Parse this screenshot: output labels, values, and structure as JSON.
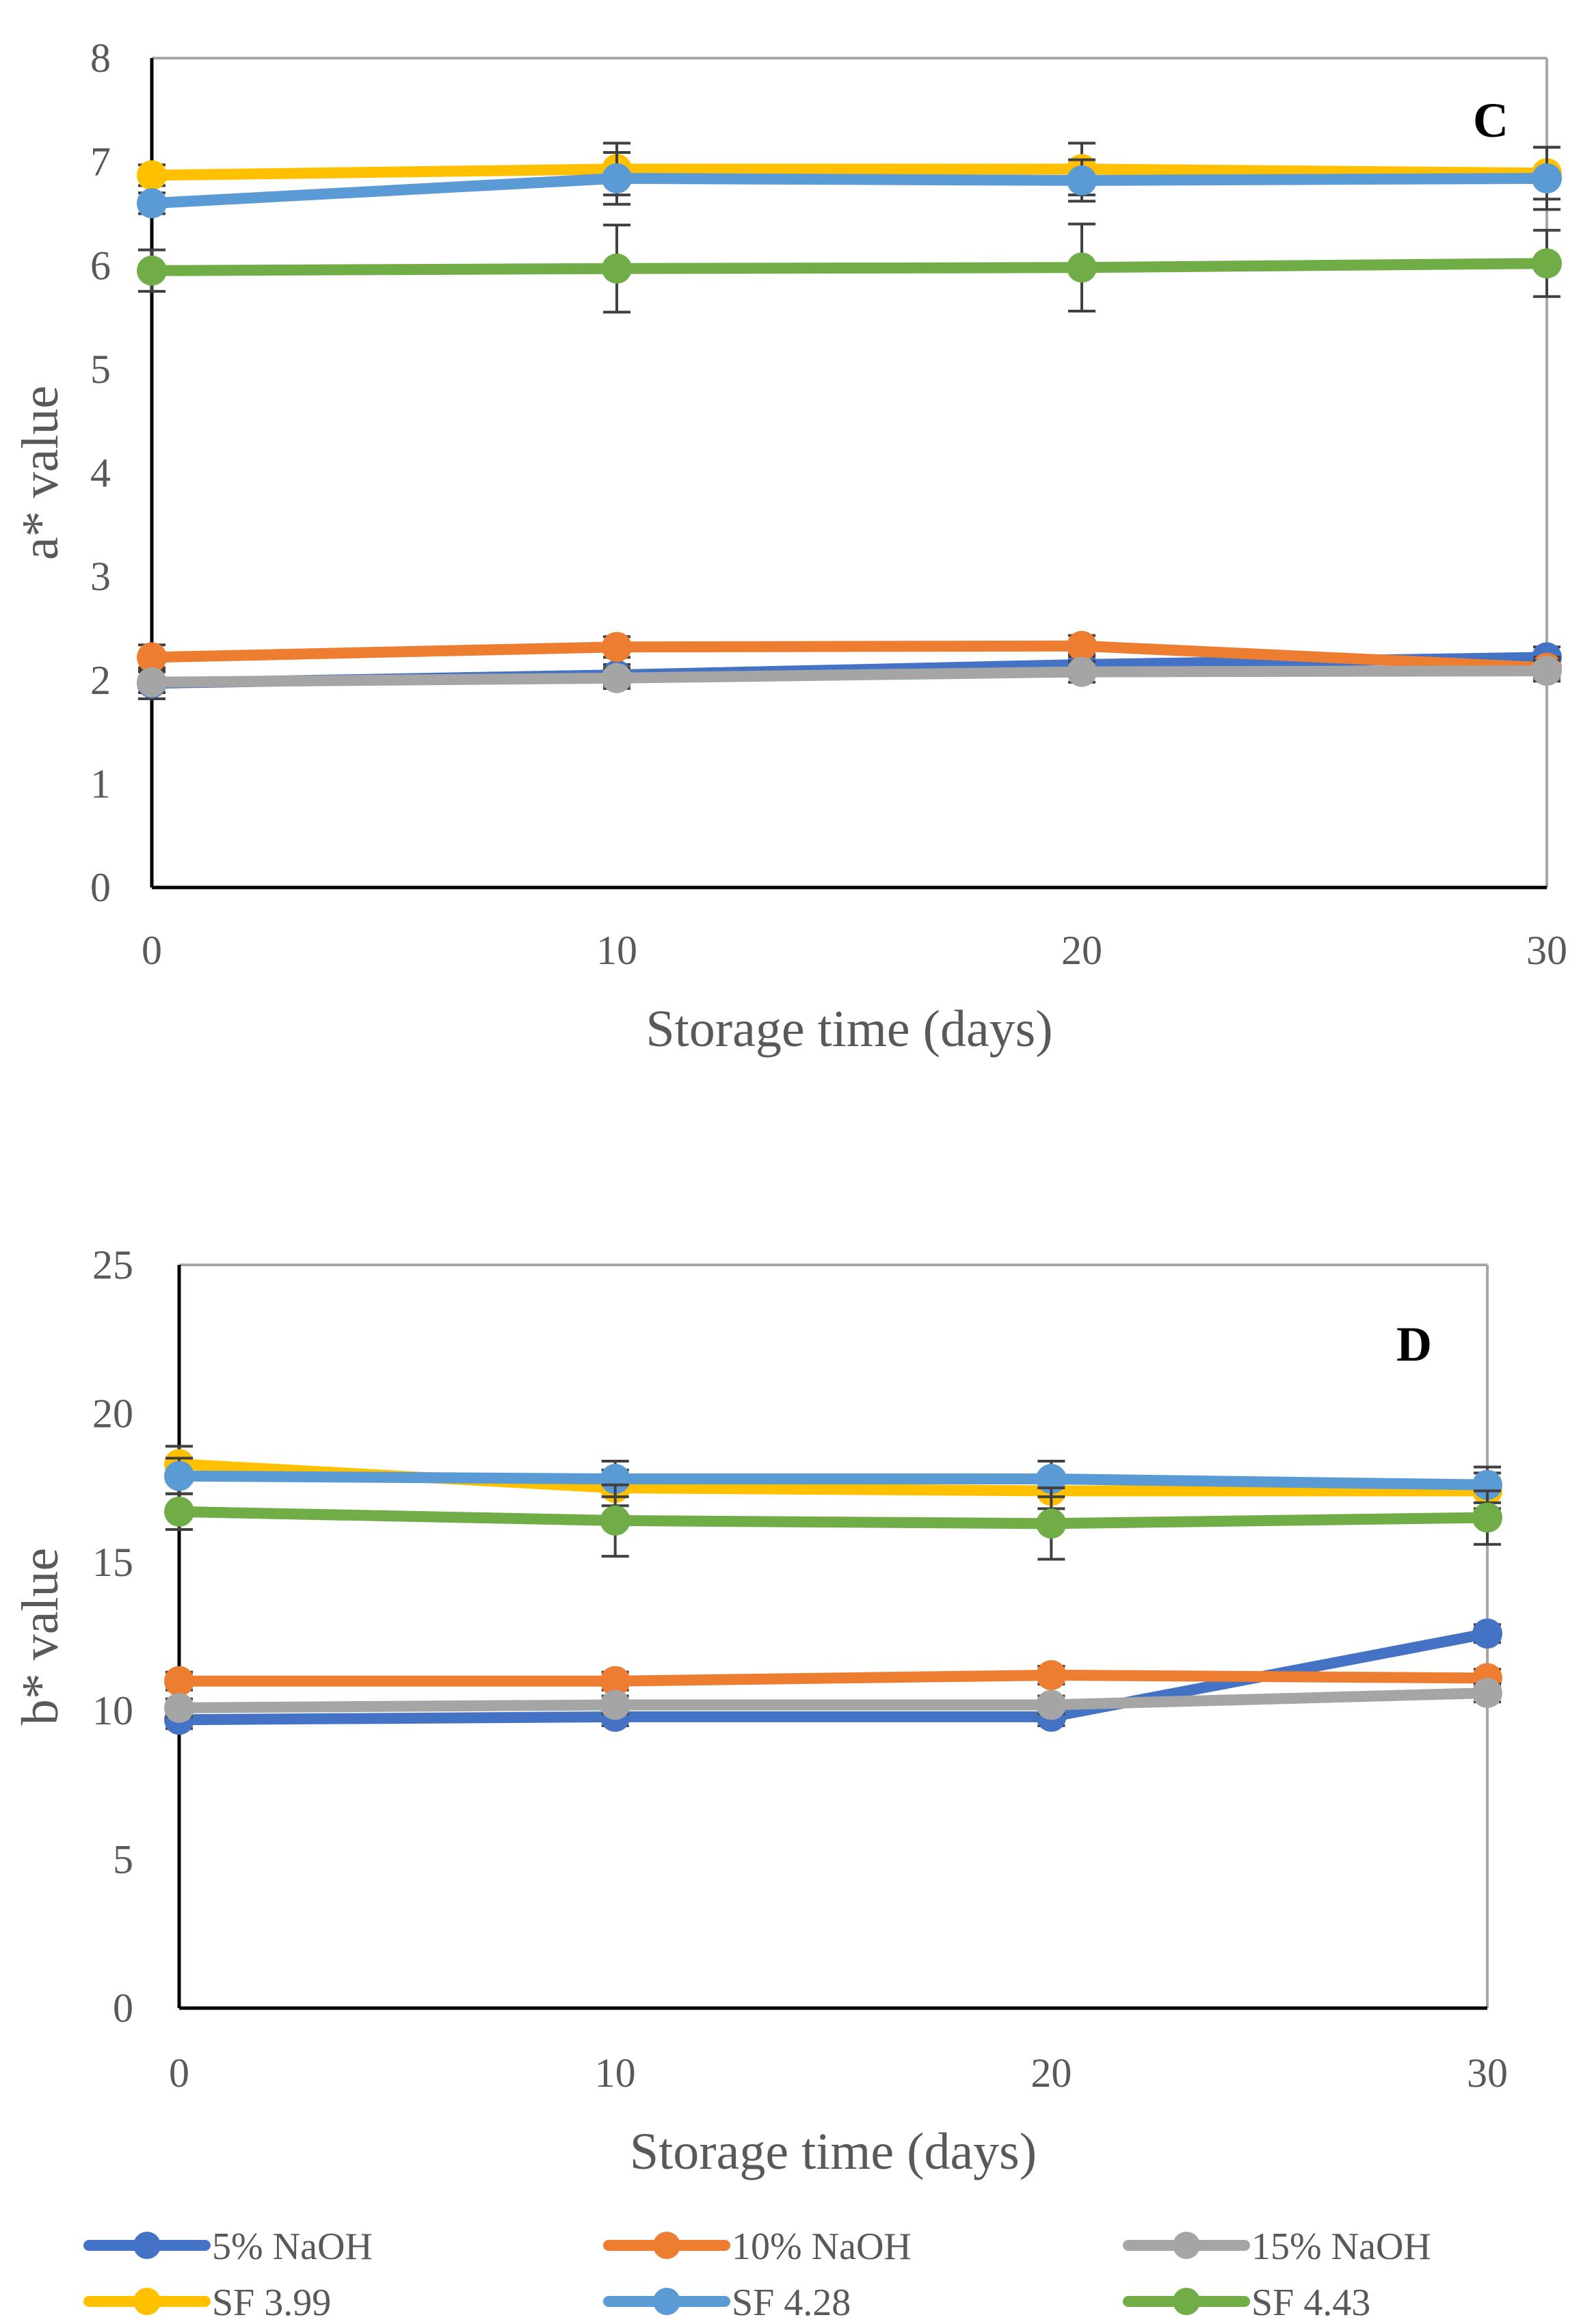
{
  "chart_data": [
    {
      "type": "line",
      "panel_label": "C",
      "xlabel": "Storage time (days)",
      "ylabel": "a* value",
      "x": [
        0,
        10,
        20,
        30
      ],
      "xticks": [
        "0",
        "10",
        "20",
        "30"
      ],
      "ylim": [
        0,
        8
      ],
      "yticks": [
        "0",
        "1",
        "2",
        "3",
        "4",
        "5",
        "6",
        "7",
        "8"
      ],
      "grid": false,
      "series": [
        {
          "name": "5% NaOH",
          "color": "#4472C4",
          "values": [
            1.97,
            2.05,
            2.15,
            2.22
          ],
          "errors": [
            0.15,
            0.1,
            0.1,
            0.1
          ]
        },
        {
          "name": "10% NaOH",
          "color": "#ED7D31",
          "values": [
            2.22,
            2.32,
            2.33,
            2.12
          ],
          "errors": [
            0.12,
            0.1,
            0.1,
            0.1
          ]
        },
        {
          "name": "15% NaOH",
          "color": "#A5A5A5",
          "values": [
            1.98,
            2.02,
            2.08,
            2.09
          ],
          "errors": [
            0.1,
            0.1,
            0.1,
            0.1
          ]
        },
        {
          "name": "SF 3.99",
          "color": "#FFC000",
          "values": [
            6.87,
            6.93,
            6.93,
            6.89
          ],
          "errors": [
            0.1,
            0.25,
            0.25,
            0.25
          ]
        },
        {
          "name": "SF 4.28",
          "color": "#5B9BD5",
          "values": [
            6.6,
            6.84,
            6.82,
            6.84
          ],
          "errors": [
            0.1,
            0.25,
            0.2,
            0.3
          ]
        },
        {
          "name": "SF 4.43",
          "color": "#70AD47",
          "values": [
            5.95,
            5.97,
            5.98,
            6.02
          ],
          "errors": [
            0.2,
            0.42,
            0.42,
            0.32
          ]
        }
      ]
    },
    {
      "type": "line",
      "panel_label": "D",
      "xlabel": "Storage time (days)",
      "ylabel": "b* value",
      "x": [
        0,
        10,
        20,
        30
      ],
      "xticks": [
        "0",
        "10",
        "20",
        "30"
      ],
      "ylim": [
        0,
        25
      ],
      "yticks": [
        "0",
        "5",
        "10",
        "15",
        "20",
        "25"
      ],
      "grid": false,
      "series": [
        {
          "name": "5% NaOH",
          "color": "#4472C4",
          "values": [
            9.7,
            9.8,
            9.8,
            12.6
          ],
          "errors": [
            0.3,
            0.3,
            0.3,
            0.3
          ]
        },
        {
          "name": "10% NaOH",
          "color": "#ED7D31",
          "values": [
            11.0,
            11.0,
            11.2,
            11.1
          ],
          "errors": [
            0.3,
            0.3,
            0.3,
            0.3
          ]
        },
        {
          "name": "15% NaOH",
          "color": "#A5A5A5",
          "values": [
            10.1,
            10.2,
            10.2,
            10.6
          ],
          "errors": [
            0.3,
            0.3,
            0.3,
            0.3
          ]
        },
        {
          "name": "SF 3.99",
          "color": "#FFC000",
          "values": [
            18.3,
            17.5,
            17.4,
            17.4
          ],
          "errors": [
            0.6,
            0.6,
            0.6,
            0.6
          ]
        },
        {
          "name": "SF 4.28",
          "color": "#5B9BD5",
          "values": [
            17.9,
            17.8,
            17.8,
            17.6
          ],
          "errors": [
            0.6,
            0.6,
            0.6,
            0.6
          ]
        },
        {
          "name": "SF 4.43",
          "color": "#70AD47",
          "values": [
            16.7,
            16.4,
            16.3,
            16.5
          ],
          "errors": [
            0.6,
            1.2,
            1.2,
            0.9
          ]
        }
      ]
    }
  ],
  "legend": {
    "placement": "bottom",
    "entries": [
      "5% NaOH",
      "10% NaOH",
      "15% NaOH",
      "SF 3.99",
      "SF 4.28",
      "SF 4.43"
    ]
  }
}
